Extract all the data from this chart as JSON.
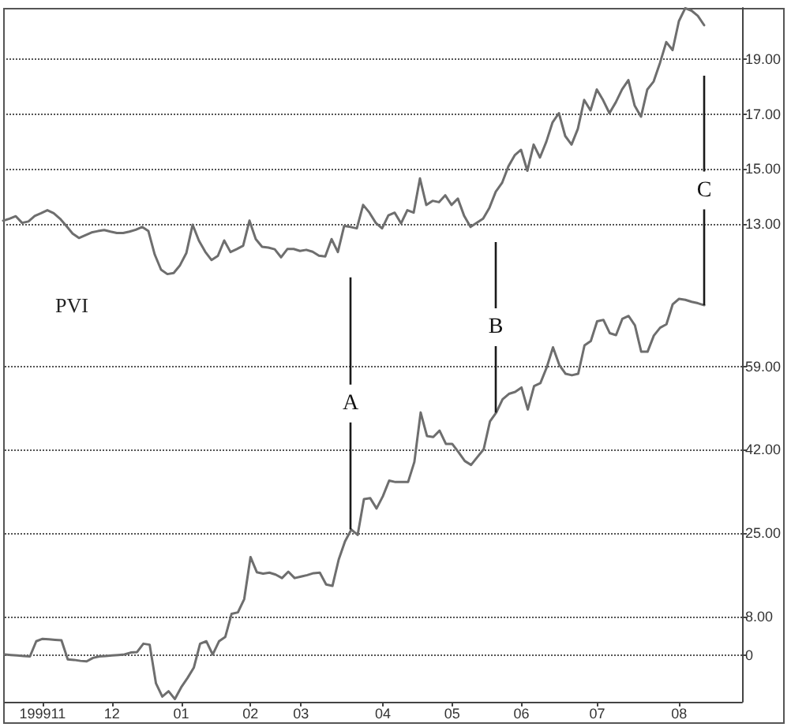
{
  "chart_data": [
    {
      "type": "line",
      "color": "#6e6e6e",
      "grid": "y",
      "tick_labels": "y",
      "categories": [
        null,
        null,
        null,
        null,
        null,
        null,
        "199911",
        null,
        null,
        null,
        null,
        null,
        null,
        null,
        null,
        null,
        null,
        "12",
        null,
        null,
        null,
        null,
        null,
        null,
        null,
        null,
        null,
        null,
        "01",
        null,
        null,
        null,
        null,
        null,
        null,
        null,
        null,
        null,
        null,
        "02",
        null,
        null,
        null,
        null,
        null,
        null,
        null,
        "03",
        null,
        null,
        null,
        null,
        null,
        null,
        null,
        null,
        null,
        null,
        null,
        null,
        "04",
        null,
        null,
        null,
        null,
        null,
        null,
        null,
        null,
        null,
        null,
        "05",
        null,
        null,
        null,
        null,
        null,
        null,
        null,
        null,
        null,
        null,
        "06",
        null,
        null,
        null,
        null,
        null,
        null,
        null,
        null,
        null,
        null,
        null,
        "07",
        null,
        null,
        null,
        null,
        null,
        null,
        null,
        null,
        null,
        null,
        null,
        null,
        "08",
        null,
        null,
        null,
        null,
        null,
        null,
        null,
        null,
        null,
        null
      ],
      "values": [
        13.13,
        13.2,
        13.29,
        13.05,
        13.1,
        13.3,
        13.4,
        13.51,
        13.4,
        13.2,
        12.94,
        12.66,
        12.5,
        12.6,
        12.7,
        12.75,
        12.79,
        12.73,
        12.68,
        12.68,
        12.73,
        12.8,
        12.9,
        12.75,
        11.9,
        11.35,
        11.19,
        11.23,
        11.51,
        11.95,
        12.98,
        12.4,
        12.0,
        11.7,
        11.85,
        12.41,
        11.99,
        12.1,
        12.22,
        13.13,
        12.46,
        12.18,
        12.15,
        12.09,
        11.8,
        12.1,
        12.1,
        12.03,
        12.07,
        12.0,
        11.86,
        11.83,
        12.46,
        11.99,
        12.94,
        12.9,
        12.85,
        13.7,
        13.42,
        13.05,
        12.85,
        13.32,
        13.42,
        13.03,
        13.51,
        13.42,
        14.66,
        13.7,
        13.85,
        13.8,
        14.05,
        13.7,
        13.93,
        13.3,
        12.9,
        13.05,
        13.2,
        13.6,
        14.18,
        14.5,
        15.1,
        15.5,
        15.7,
        14.94,
        15.89,
        15.42,
        15.99,
        16.7,
        17.03,
        16.2,
        15.89,
        16.46,
        17.51,
        17.13,
        17.89,
        17.5,
        17.03,
        17.42,
        17.89,
        18.23,
        17.3,
        16.9,
        17.89,
        18.18,
        18.85,
        19.61,
        19.32,
        20.37,
        20.84,
        20.75,
        20.56,
        20.22,
        null,
        null,
        null,
        null,
        null,
        null
      ],
      "ylim": [
        10.95,
        20.85
      ],
      "yticks": [
        {
          "value": 13,
          "label": "13.00"
        },
        {
          "value": 15,
          "label": "15.00"
        },
        {
          "value": 17,
          "label": "17.00"
        },
        {
          "value": 19,
          "label": "19.00"
        }
      ],
      "annotations": [
        "C"
      ]
    },
    {
      "type": "line",
      "title": "PVI",
      "color": "#6e6e6e",
      "grid": "y",
      "categories": [
        null,
        null,
        null,
        null,
        null,
        null,
        "199911",
        null,
        null,
        null,
        null,
        null,
        null,
        null,
        null,
        null,
        null,
        "12",
        null,
        null,
        null,
        null,
        null,
        null,
        null,
        null,
        null,
        null,
        "01",
        null,
        null,
        null,
        null,
        null,
        null,
        null,
        null,
        null,
        null,
        "02",
        null,
        null,
        null,
        null,
        null,
        null,
        null,
        "03",
        null,
        null,
        null,
        null,
        null,
        null,
        null,
        null,
        null,
        null,
        null,
        null,
        "04",
        null,
        null,
        null,
        null,
        null,
        null,
        null,
        null,
        null,
        null,
        "05",
        null,
        null,
        null,
        null,
        null,
        null,
        null,
        null,
        null,
        null,
        "06",
        null,
        null,
        null,
        null,
        null,
        null,
        null,
        null,
        null,
        null,
        null,
        "07",
        null,
        null,
        null,
        null,
        null,
        null,
        null,
        null,
        null,
        null,
        null,
        null,
        "08",
        null,
        null,
        null,
        null,
        null,
        null,
        null,
        null,
        null,
        null
      ],
      "values": [
        0.2,
        0.1,
        0.0,
        -0.1,
        -0.2,
        2.9,
        3.4,
        3.3,
        3.2,
        3.1,
        -0.8,
        -0.9,
        -1.1,
        -1.2,
        -0.5,
        -0.2,
        -0.1,
        0.0,
        0.1,
        0.2,
        0.6,
        0.7,
        2.4,
        2.2,
        -5.7,
        -8.4,
        -7.3,
        -8.9,
        -6.5,
        -4.6,
        -2.5,
        2.4,
        2.9,
        0.2,
        2.9,
        3.8,
        8.5,
        8.8,
        11.5,
        20.1,
        17.0,
        16.7,
        16.9,
        16.5,
        15.8,
        17.1,
        15.8,
        16.1,
        16.4,
        16.8,
        16.9,
        14.5,
        14.2,
        19.6,
        23.3,
        25.7,
        24.6,
        31.9,
        32.1,
        30.0,
        32.5,
        35.7,
        35.4,
        35.4,
        35.4,
        39.5,
        49.6,
        44.8,
        44.6,
        45.9,
        43.2,
        43.2,
        41.5,
        39.7,
        38.9,
        40.5,
        42.1,
        47.8,
        49.6,
        52.3,
        53.4,
        53.8,
        54.7,
        50.2,
        55.0,
        55.6,
        58.8,
        62.9,
        59.3,
        57.5,
        57.2,
        57.5,
        63.3,
        64.2,
        68.2,
        68.5,
        65.8,
        65.4,
        68.7,
        69.3,
        67.4,
        62.0,
        62.0,
        65.3,
        66.9,
        67.6,
        71.7,
        72.8,
        72.6,
        72.2,
        71.9,
        71.5,
        null,
        null,
        null,
        null,
        null,
        null
      ],
      "ylim": [
        -9.45,
        76.5
      ],
      "yticks": [
        0,
        {
          "value": 8,
          "label": "8.00"
        },
        {
          "value": 25,
          "label": "25.00"
        },
        {
          "value": 42,
          "label": "42.00"
        },
        {
          "value": 59,
          "label": "59.00"
        }
      ],
      "annotations": [
        {
          "text": "A",
          "y": 25.7
        },
        {
          "text": "B",
          "y": 49.6
        }
      ]
    }
  ]
}
